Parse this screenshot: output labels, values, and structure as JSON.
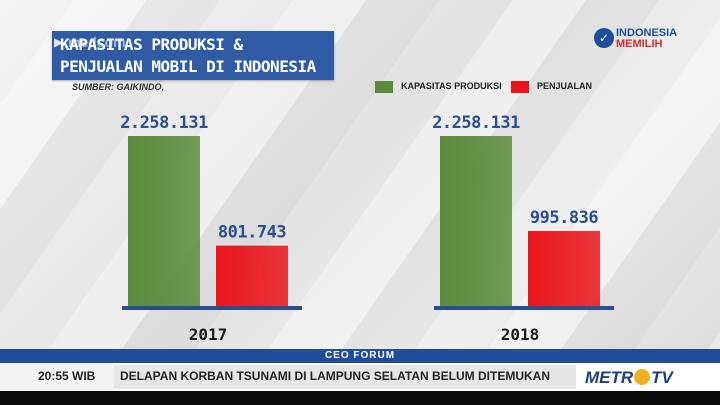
{
  "title": {
    "line1": "KAPASITAS PRODUKSI &",
    "line2": "PENJUALAN MOBIL DI INDONESIA",
    "watermark": "medcom"
  },
  "source": "SUMBER: GAIKINDO,",
  "logo_top": {
    "line1": "INDONESIA",
    "line2": "MEMILIH"
  },
  "chart_data": {
    "type": "bar",
    "categories": [
      "2017",
      "2018"
    ],
    "series": [
      {
        "name": "KAPASITAS PRODUKSI",
        "values": [
          2258131,
          2258131
        ],
        "labels": [
          "2.258.131",
          "2.258.131"
        ],
        "color": "#5c8a3d"
      },
      {
        "name": "PENJUALAN",
        "values": [
          801743,
          995836
        ],
        "labels": [
          "801.743",
          "995.836"
        ],
        "color": "#e8161c"
      }
    ],
    "title": "KAPASITAS PRODUKSI & PENJUALAN MOBIL DI INDONESIA",
    "legend_position": "top-right",
    "grid": false,
    "ylim": [
      0,
      2258131
    ]
  },
  "ticker": {
    "program": "CEO FORUM",
    "time": "20:55 WIB",
    "headline": "DELAPAN KORBAN TSUNAMI DI LAMPUNG SELATAN BELUM DITEMUKAN",
    "channel_prefix": "METR",
    "channel_suffix": "TV"
  },
  "colors": {
    "title_bg": "#2f5aa4",
    "axis": "#2a4f90",
    "band": "#1f4d99"
  }
}
